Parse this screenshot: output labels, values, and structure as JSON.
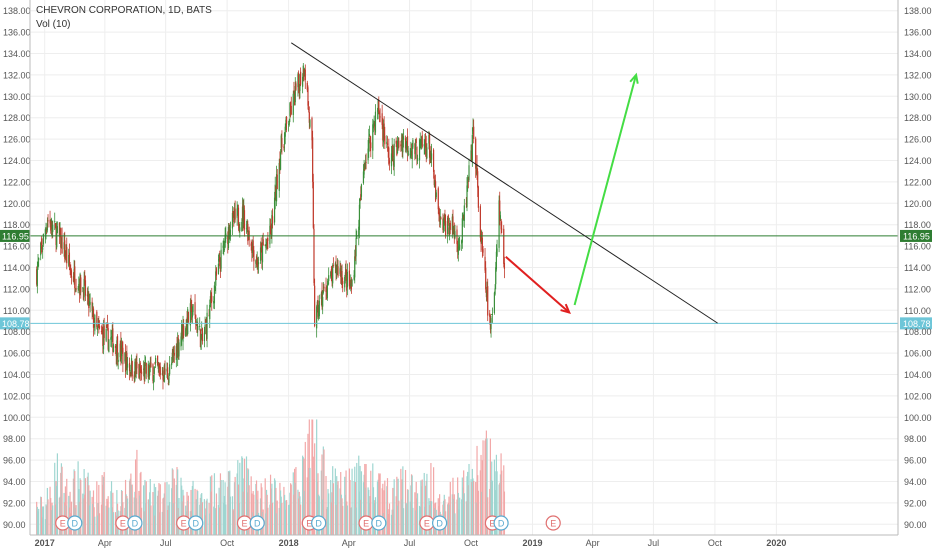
{
  "header": {
    "symbol_line": "CHEVRON CORPORATION, 1D, BATS",
    "volume_line": "Vol (10)"
  },
  "colors": {
    "up": "#3a8f3a",
    "down": "#c0392b",
    "vol_up": "#9fd6d1",
    "vol_down": "#f2a8a8",
    "grid": "#eeeeee",
    "trendline": "#222222",
    "arrow_down": "#e02020",
    "arrow_up": "#44dd44",
    "level_green": "#2e7d32",
    "level_cyan": "#6ec6d8",
    "earnings": "#e07070",
    "dividend": "#5aaad0"
  },
  "chart_data": {
    "type": "candlestick",
    "title": "CHEVRON CORPORATION, 1D, BATS",
    "ylim": [
      89,
      139
    ],
    "y_ticks": [
      "138.00",
      "136.00",
      "134.00",
      "132.00",
      "130.00",
      "128.00",
      "126.00",
      "124.00",
      "122.00",
      "120.00",
      "118.00",
      "116.00",
      "114.00",
      "112.00",
      "110.00",
      "108.00",
      "106.00",
      "104.00",
      "102.00",
      "100.00",
      "98.00",
      "96.00",
      "94.00",
      "92.00",
      "90.00"
    ],
    "x_ticks": [
      "2017",
      "Apr",
      "Jul",
      "Oct",
      "2018",
      "Apr",
      "Jul",
      "Oct",
      "2019",
      "Apr",
      "Jul",
      "Oct",
      "2020"
    ],
    "price_series": [
      {
        "date": "2016-12-20",
        "close": 113.5
      },
      {
        "date": "2017-01-05",
        "close": 118.5
      },
      {
        "date": "2017-01-25",
        "close": 116.5
      },
      {
        "date": "2017-02-10",
        "close": 113.5
      },
      {
        "date": "2017-03-01",
        "close": 112.0
      },
      {
        "date": "2017-03-20",
        "close": 108.0
      },
      {
        "date": "2017-04-15",
        "close": 107.0
      },
      {
        "date": "2017-05-05",
        "close": 105.0
      },
      {
        "date": "2017-05-25",
        "close": 104.0
      },
      {
        "date": "2017-06-15",
        "close": 104.5
      },
      {
        "date": "2017-07-05",
        "close": 104.0
      },
      {
        "date": "2017-07-25",
        "close": 108.0
      },
      {
        "date": "2017-08-10",
        "close": 110.0
      },
      {
        "date": "2017-08-25",
        "close": 107.0
      },
      {
        "date": "2017-09-15",
        "close": 113.0
      },
      {
        "date": "2017-10-05",
        "close": 118.0
      },
      {
        "date": "2017-10-25",
        "close": 119.0
      },
      {
        "date": "2017-11-15",
        "close": 114.5
      },
      {
        "date": "2017-12-05",
        "close": 117.0
      },
      {
        "date": "2017-12-20",
        "close": 125.0
      },
      {
        "date": "2018-01-10",
        "close": 130.0
      },
      {
        "date": "2018-01-25",
        "close": 133.0
      },
      {
        "date": "2018-02-05",
        "close": 125.0
      },
      {
        "date": "2018-02-09",
        "close": 109.0
      },
      {
        "date": "2018-02-25",
        "close": 112.0
      },
      {
        "date": "2018-03-15",
        "close": 114.0
      },
      {
        "date": "2018-04-05",
        "close": 112.0
      },
      {
        "date": "2018-04-25",
        "close": 124.0
      },
      {
        "date": "2018-05-15",
        "close": 129.0
      },
      {
        "date": "2018-06-01",
        "close": 124.0
      },
      {
        "date": "2018-06-20",
        "close": 126.0
      },
      {
        "date": "2018-07-10",
        "close": 125.0
      },
      {
        "date": "2018-07-30",
        "close": 125.5
      },
      {
        "date": "2018-08-15",
        "close": 118.0
      },
      {
        "date": "2018-09-01",
        "close": 118.0
      },
      {
        "date": "2018-09-15",
        "close": 116.0
      },
      {
        "date": "2018-10-01",
        "close": 124.0
      },
      {
        "date": "2018-10-05",
        "close": 127.0
      },
      {
        "date": "2018-10-15",
        "close": 117.0
      },
      {
        "date": "2018-10-25",
        "close": 111.0
      },
      {
        "date": "2018-10-30",
        "close": 108.0
      },
      {
        "date": "2018-11-05",
        "close": 112.0
      },
      {
        "date": "2018-11-12",
        "close": 120.0
      },
      {
        "date": "2018-11-20",
        "close": 114.0
      }
    ],
    "volume_series": [
      {
        "date": "2017-01-01",
        "value": 91.8
      },
      {
        "date": "2017-01-20",
        "value": 95.0
      },
      {
        "date": "2017-02-05",
        "value": 93.0
      },
      {
        "date": "2017-02-25",
        "value": 94.5
      },
      {
        "date": "2017-03-15",
        "value": 92.5
      },
      {
        "date": "2017-04-05",
        "value": 94.0
      },
      {
        "date": "2017-04-25",
        "value": 92.0
      },
      {
        "date": "2017-05-15",
        "value": 95.5
      },
      {
        "date": "2017-06-05",
        "value": 93.0
      },
      {
        "date": "2017-06-25",
        "value": 92.5
      },
      {
        "date": "2017-07-15",
        "value": 94.0
      },
      {
        "date": "2017-08-05",
        "value": 93.0
      },
      {
        "date": "2017-08-25",
        "value": 92.5
      },
      {
        "date": "2017-09-15",
        "value": 94.0
      },
      {
        "date": "2017-10-05",
        "value": 93.5
      },
      {
        "date": "2017-10-25",
        "value": 95.0
      },
      {
        "date": "2017-11-15",
        "value": 93.0
      },
      {
        "date": "2017-12-05",
        "value": 93.5
      },
      {
        "date": "2017-12-25",
        "value": 92.5
      },
      {
        "date": "2018-01-15",
        "value": 94.0
      },
      {
        "date": "2018-02-06",
        "value": 99.5
      },
      {
        "date": "2018-02-25",
        "value": 94.5
      },
      {
        "date": "2018-03-15",
        "value": 93.5
      },
      {
        "date": "2018-04-05",
        "value": 94.0
      },
      {
        "date": "2018-04-25",
        "value": 95.0
      },
      {
        "date": "2018-05-15",
        "value": 93.5
      },
      {
        "date": "2018-06-05",
        "value": 93.0
      },
      {
        "date": "2018-06-25",
        "value": 94.0
      },
      {
        "date": "2018-07-15",
        "value": 93.0
      },
      {
        "date": "2018-08-05",
        "value": 94.5
      },
      {
        "date": "2018-08-25",
        "value": 92.5
      },
      {
        "date": "2018-09-15",
        "value": 93.5
      },
      {
        "date": "2018-10-05",
        "value": 95.0
      },
      {
        "date": "2018-10-25",
        "value": 96.5
      },
      {
        "date": "2018-11-10",
        "value": 95.5
      },
      {
        "date": "2018-11-22",
        "value": 94.0
      }
    ],
    "price_levels": [
      {
        "value": 116.95,
        "label": "116.95",
        "color": "#2e7d32"
      },
      {
        "value": 108.78,
        "label": "108.78",
        "color": "#6ec6d8"
      }
    ],
    "trendline": {
      "x1": "2018-01-05",
      "y1": 135.0,
      "x2": "2019-10-05",
      "y2": 108.8
    },
    "arrows": [
      {
        "kind": "down",
        "x1": "2018-11-22",
        "y1": 115.0,
        "x2": "2019-02-25",
        "y2": 109.8
      },
      {
        "kind": "up",
        "x1": "2019-03-05",
        "y1": 110.5,
        "x2": "2019-06-05",
        "y2": 132.0
      }
    ],
    "events": [
      {
        "date": "2017-01-28",
        "kind": "E"
      },
      {
        "date": "2017-02-15",
        "kind": "D"
      },
      {
        "date": "2017-04-28",
        "kind": "E"
      },
      {
        "date": "2017-05-16",
        "kind": "D"
      },
      {
        "date": "2017-07-28",
        "kind": "E"
      },
      {
        "date": "2017-08-15",
        "kind": "D"
      },
      {
        "date": "2017-10-27",
        "kind": "E"
      },
      {
        "date": "2017-11-15",
        "kind": "D"
      },
      {
        "date": "2018-02-01",
        "kind": "E"
      },
      {
        "date": "2018-02-15",
        "kind": "D"
      },
      {
        "date": "2018-04-27",
        "kind": "E"
      },
      {
        "date": "2018-05-16",
        "kind": "D"
      },
      {
        "date": "2018-07-27",
        "kind": "E"
      },
      {
        "date": "2018-08-15",
        "kind": "D"
      },
      {
        "date": "2018-11-02",
        "kind": "E"
      },
      {
        "date": "2018-11-15",
        "kind": "D"
      },
      {
        "date": "2019-02-01",
        "kind": "E"
      }
    ]
  }
}
